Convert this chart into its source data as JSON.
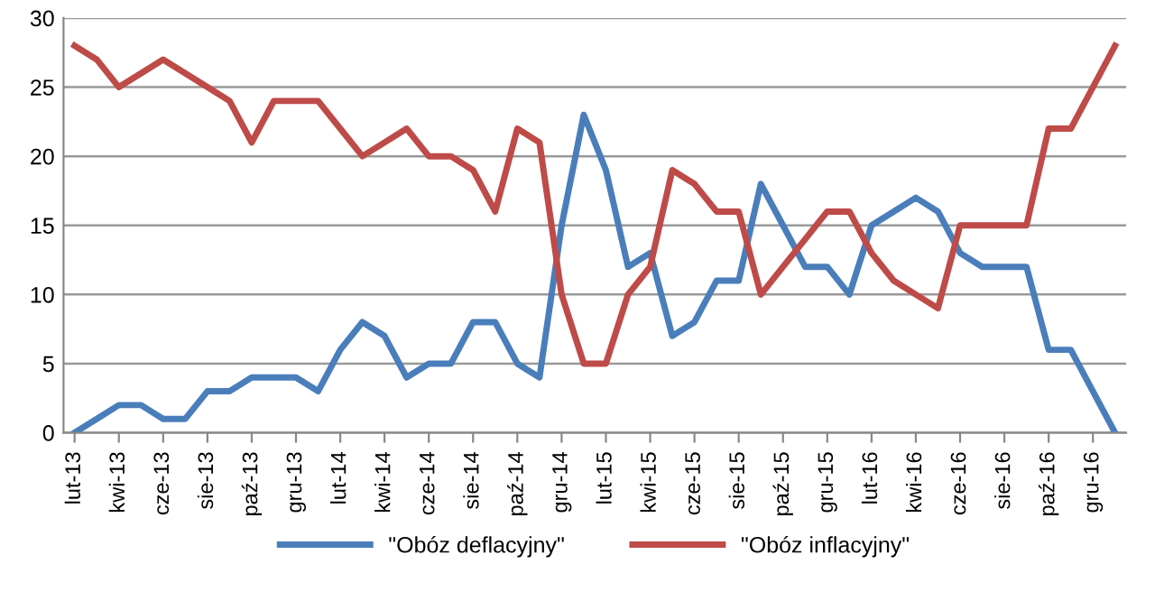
{
  "chart_data": {
    "type": "line",
    "categories": [
      "lut-13",
      null,
      "kwi-13",
      null,
      "cze-13",
      null,
      "sie-13",
      null,
      "paź-13",
      null,
      "gru-13",
      null,
      "lut-14",
      null,
      "kwi-14",
      null,
      "cze-14",
      null,
      "sie-14",
      null,
      "paź-14",
      null,
      "gru-14",
      null,
      "lut-15",
      null,
      "kwi-15",
      null,
      "cze-15",
      null,
      "sie-15",
      null,
      "paź-15",
      null,
      "gru-15",
      null,
      "lut-16",
      null,
      "kwi-16",
      null,
      "cze-16",
      null,
      "sie-16",
      null,
      "paź-16",
      null,
      "gru-16",
      null
    ],
    "series": [
      {
        "name": "\"Obóz deflacyjny\"",
        "color": "#4a7ebb",
        "values": [
          0,
          1,
          2,
          2,
          1,
          1,
          3,
          3,
          4,
          4,
          4,
          3,
          6,
          8,
          7,
          4,
          5,
          5,
          8,
          8,
          5,
          4,
          15,
          23,
          19,
          12,
          13,
          7,
          8,
          11,
          11,
          18,
          15,
          12,
          12,
          10,
          15,
          16,
          17,
          16,
          13,
          12,
          12,
          12,
          6,
          6,
          3,
          0
        ]
      },
      {
        "name": "\"Obóz inflacyjny\"",
        "color": "#be4b48",
        "values": [
          28,
          27,
          25,
          26,
          27,
          26,
          25,
          24,
          21,
          24,
          24,
          24,
          22,
          20,
          21,
          22,
          20,
          20,
          19,
          16,
          22,
          21,
          10,
          5,
          5,
          10,
          12,
          19,
          18,
          16,
          16,
          10,
          12,
          14,
          16,
          16,
          13,
          11,
          10,
          9,
          15,
          15,
          15,
          15,
          22,
          22,
          25,
          28
        ]
      }
    ],
    "ylim": [
      0,
      30
    ],
    "yticks": [
      0,
      5,
      10,
      15,
      20,
      25,
      30
    ],
    "grid": "y",
    "legend": "bottom",
    "marker": "none",
    "line_style": "solid"
  }
}
